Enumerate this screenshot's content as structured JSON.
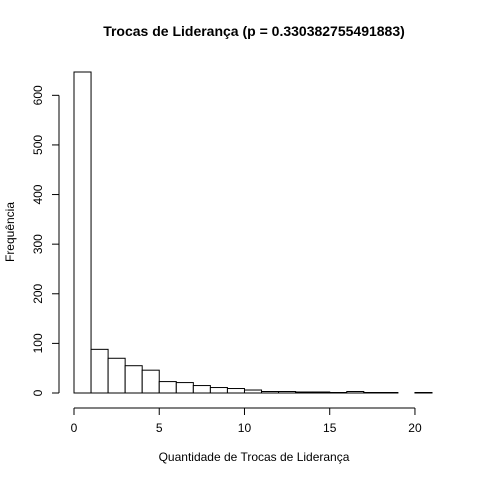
{
  "chart_data": {
    "type": "bar",
    "title": "Trocas de Liderança (p = 0.330382755491883)",
    "xlabel": "Quantidade de Trocas de Liderança",
    "ylabel": "Frequência",
    "bin_edges": [
      0,
      1,
      2,
      3,
      4,
      5,
      6,
      7,
      8,
      9,
      10,
      11,
      12,
      13,
      14,
      15,
      16,
      17,
      18,
      19,
      20,
      21
    ],
    "values": [
      647,
      88,
      70,
      55,
      46,
      23,
      21,
      15,
      11,
      9,
      6,
      3,
      3,
      2,
      2,
      1,
      3,
      1,
      1,
      0,
      1
    ],
    "xlim": [
      0,
      21
    ],
    "ylim": [
      0,
      647
    ],
    "x_ticks": [
      0,
      5,
      10,
      15,
      20
    ],
    "y_ticks": [
      0,
      100,
      200,
      300,
      400,
      500,
      600
    ],
    "grid": false
  }
}
